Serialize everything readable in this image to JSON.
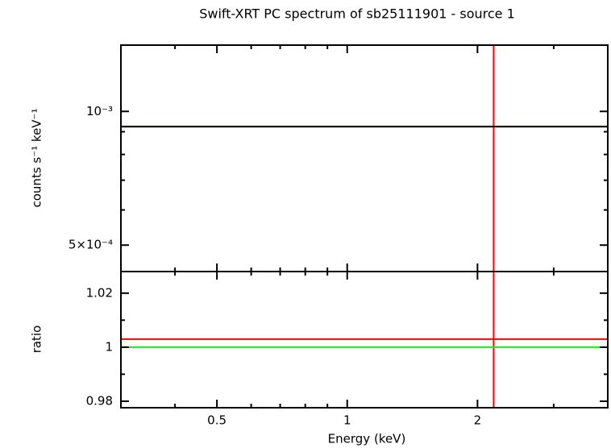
{
  "chart_data": [
    {
      "type": "line",
      "title": "Swift-XRT PC spectrum of sb25111901 - source 1",
      "ylabel": "counts s⁻¹ keV⁻¹",
      "xlog": true,
      "ylog": true,
      "xlim": [
        0.3,
        4
      ],
      "xticks": [
        0.5,
        1,
        2
      ],
      "xminor": [
        0.3,
        0.4,
        0.6,
        0.7,
        0.8,
        0.9,
        3,
        4
      ],
      "ylim": [
        0.000436,
        0.00141
      ],
      "yticks": [
        {
          "value": 0.0005,
          "label": "5×10⁻⁴"
        },
        {
          "value": 0.001,
          "label": "10⁻³"
        }
      ],
      "yminor": [
        0.0006,
        0.0007,
        0.0008,
        0.0009
      ],
      "series": [
        {
          "color": "#ff0000",
          "x": [
            2.18
          ],
          "values": [
            0.000924
          ],
          "xerr_low": [
            0.3
          ],
          "xerr_high": [
            4
          ],
          "yerr": [
            0.001
          ]
        },
        {
          "color": "#000000",
          "x": [
            0.3,
            4
          ],
          "values": [
            0.000924,
            0.000924
          ]
        }
      ]
    },
    {
      "type": "line",
      "xlabel": "Energy (keV)",
      "ylabel": "ratio",
      "xlog": true,
      "ylog": false,
      "xlim": [
        0.3,
        4
      ],
      "xticks": [
        0.5,
        1,
        2
      ],
      "xminor": [
        0.3,
        0.4,
        0.6,
        0.7,
        0.8,
        0.9,
        3,
        4
      ],
      "ylim": [
        0.9776,
        1.028
      ],
      "yticks": [
        0.98,
        1,
        1.02
      ],
      "yminor": [
        0.99,
        1.01
      ],
      "series": [
        {
          "color": "#ff0000",
          "x": [
            2.18
          ],
          "values": [
            1.003
          ],
          "xerr_low": [
            0.3
          ],
          "xerr_high": [
            4
          ],
          "yerr": [
            0.05
          ]
        },
        {
          "color": "#00ff00",
          "x": [
            0.3,
            4
          ],
          "values": [
            1,
            1
          ]
        }
      ]
    }
  ]
}
